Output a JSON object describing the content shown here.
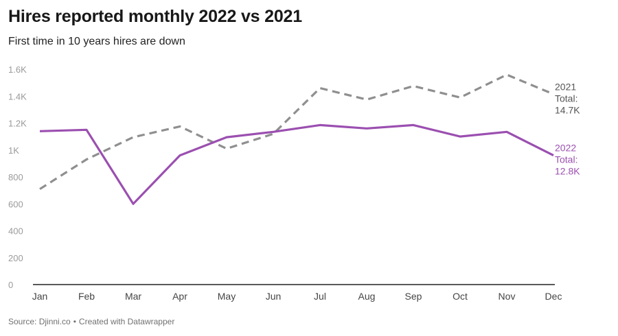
{
  "title": "Hires reported monthly 2022 vs 2021",
  "subtitle": "First time in 10 years hires are down",
  "footer": {
    "source": "Source: Djinni.co",
    "separator": "•",
    "credit": "Created with Datawrapper"
  },
  "chart_data": {
    "type": "line",
    "title": "Hires reported monthly 2022 vs 2021",
    "subtitle": "First time in 10 years hires are down",
    "categories": [
      "Jan",
      "Feb",
      "Mar",
      "Apr",
      "May",
      "Jun",
      "Jul",
      "Aug",
      "Sep",
      "Oct",
      "Nov",
      "Dec"
    ],
    "y_ticks": [
      0,
      200,
      400,
      600,
      800,
      1000,
      1200,
      1400,
      1600
    ],
    "y_tick_labels": [
      "0",
      "200",
      "400",
      "600",
      "800",
      "1K",
      "1.2K",
      "1.4K",
      "1.6K"
    ],
    "ylim": [
      0,
      1600
    ],
    "grid": false,
    "series": [
      {
        "name": "2021",
        "style": "dashed",
        "color": "#8f8f8f",
        "values": [
          710,
          930,
          1095,
          1175,
          1010,
          1120,
          1460,
          1375,
          1475,
          1390,
          1560,
          1415
        ],
        "label_lines": [
          "2021",
          "Total:",
          "14.7K"
        ]
      },
      {
        "name": "2022",
        "style": "solid",
        "color": "#9b4fb0",
        "values": [
          1140,
          1150,
          600,
          960,
          1095,
          1135,
          1185,
          1160,
          1185,
          1100,
          1135,
          960
        ],
        "label_lines": [
          "2022",
          "Total:",
          "12.8K"
        ]
      }
    ]
  }
}
